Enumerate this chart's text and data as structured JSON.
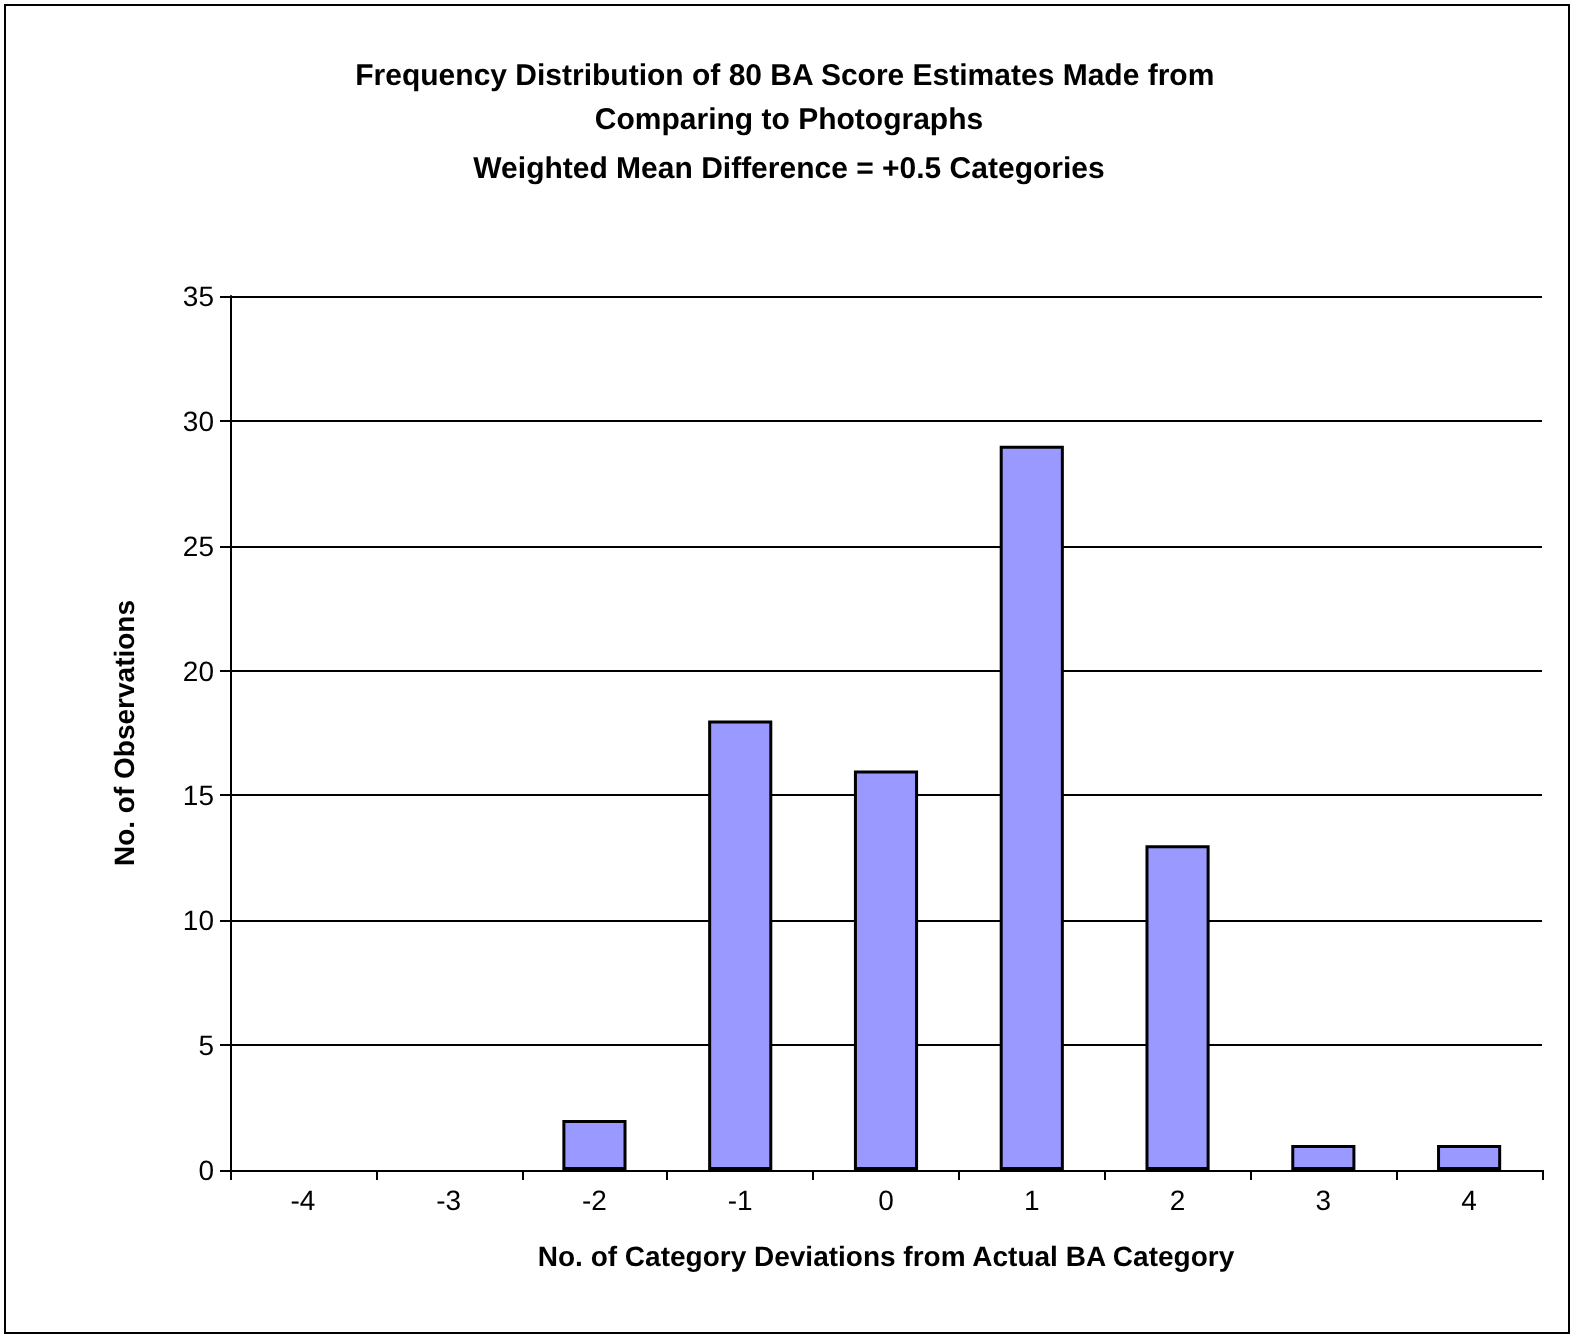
{
  "chart_data": {
    "type": "bar",
    "title": "Frequency Distribution of 80 BA Score Estimates Made from Comparing to Photographs",
    "subtitle": "Weighted Mean Difference = +0.5 Categories",
    "xlabel": "No. of Category Deviations from Actual BA Category",
    "ylabel": "No. of Observations",
    "categories": [
      "-4",
      "-3",
      "-2",
      "-1",
      "0",
      "1",
      "2",
      "3",
      "4"
    ],
    "values": [
      0,
      0,
      2,
      18,
      16,
      29,
      13,
      1,
      1
    ],
    "color": "#9999ff",
    "ylim": [
      0,
      35
    ],
    "yticks": [
      0,
      5,
      10,
      15,
      20,
      25,
      30,
      35
    ],
    "grid": "y"
  }
}
